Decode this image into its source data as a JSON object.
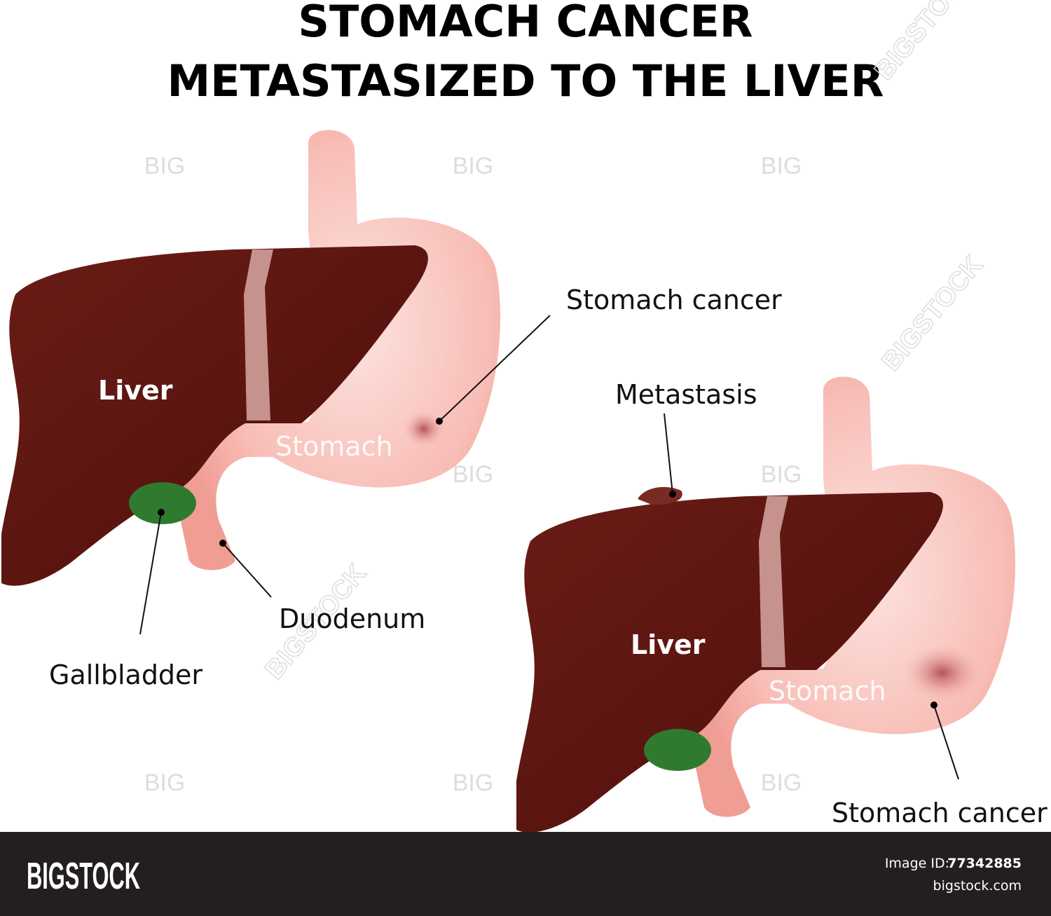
{
  "header": {
    "title_line1": "STOMACH CANCER",
    "title_line2": "METASTASIZED TO THE  LIVER"
  },
  "diagram1": {
    "liver": "Liver",
    "stomach": "Stomach",
    "stomach_cancer": "Stomach cancer",
    "duodenum": "Duodenum",
    "gallbladder": "Gallbladder"
  },
  "diagram2": {
    "metastasis": "Metastasis",
    "liver": "Liver",
    "stomach": "Stomach",
    "stomach_cancer": "Stomach cancer"
  },
  "watermark": {
    "short": "BIG",
    "long": "BIGSTOCK"
  },
  "footer": {
    "brand": "BIGSTOCK",
    "image_id_label": "Image ID:",
    "image_id": "77342885",
    "site": "bigstock.com"
  }
}
